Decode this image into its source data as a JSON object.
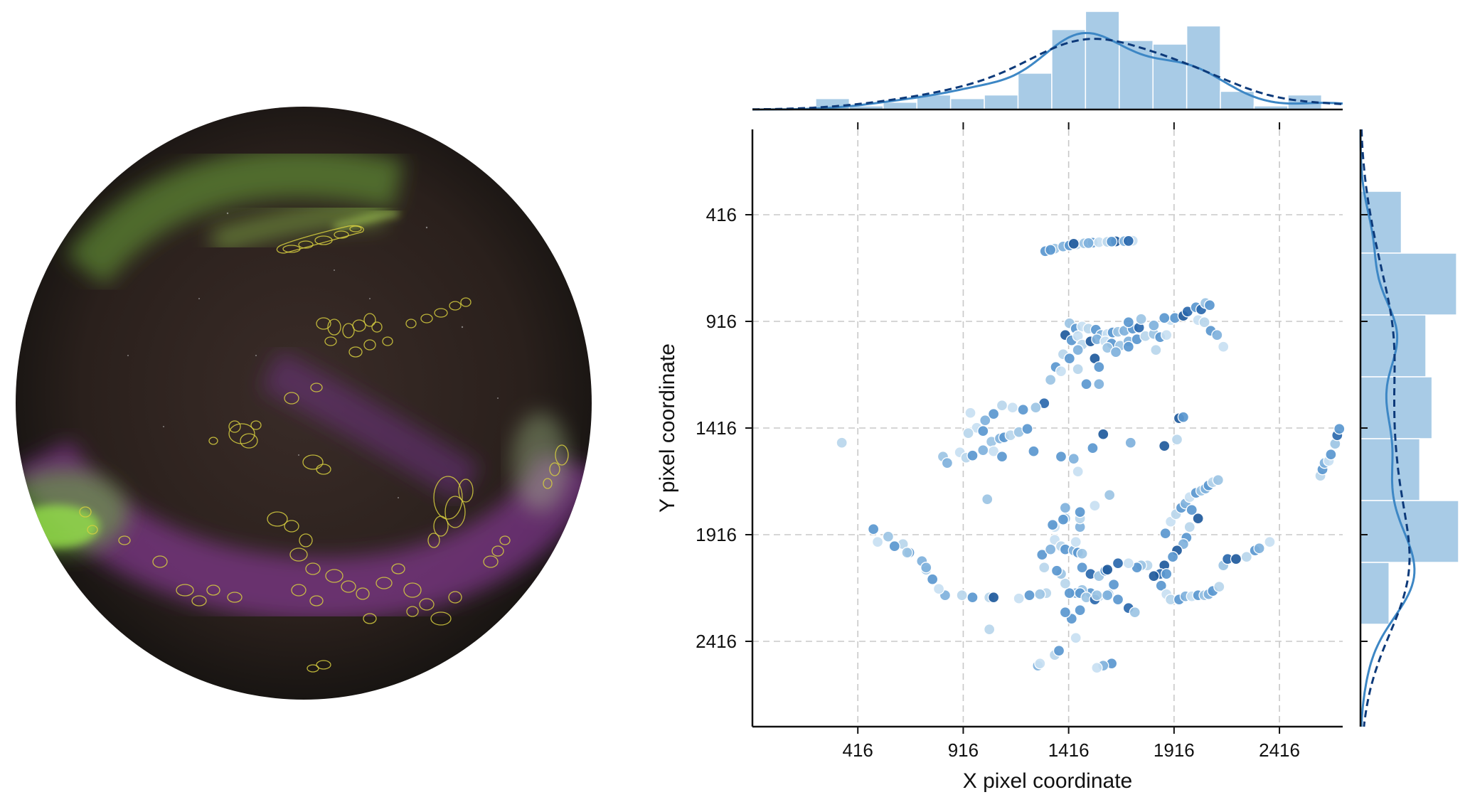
{
  "colors": {
    "sky_outer": "#1a1614",
    "sky_inner": "#3a2c26",
    "aurora_green": "#8fd040",
    "aurora_purple": "#9a40b0",
    "contour_yellow": "#d8d040",
    "point_light": "#b8d6ec",
    "point_dark": "#1f5a9c",
    "hist_fill": "#a8cbe6",
    "kde_solid": "#3d87c5",
    "kde_dashed": "#0d3a7a",
    "grid": "#c8c8c8"
  },
  "chart_data": {
    "type": "scatter",
    "xlabel": "X pixel coordinate",
    "ylabel": "Y pixel coordinate",
    "xlim": [
      -84,
      2716
    ],
    "ylim": [
      2816,
      16
    ],
    "xticks": [
      416,
      916,
      1416,
      1916,
      2416
    ],
    "yticks": [
      416,
      916,
      1416,
      1916,
      2416
    ],
    "grid": true,
    "points": [
      [
        1305,
        587
      ],
      [
        1350,
        575
      ],
      [
        1390,
        565
      ],
      [
        1420,
        560
      ],
      [
        1455,
        555
      ],
      [
        1490,
        550
      ],
      [
        1530,
        547
      ],
      [
        1560,
        545
      ],
      [
        1600,
        543
      ],
      [
        1640,
        541
      ],
      [
        1680,
        540
      ],
      [
        1720,
        538
      ],
      [
        1330,
        581
      ],
      [
        1440,
        552
      ],
      [
        1510,
        549
      ],
      [
        1620,
        542
      ],
      [
        1700,
        539
      ],
      [
        1420,
        925
      ],
      [
        1450,
        950
      ],
      [
        1480,
        940
      ],
      [
        1510,
        950
      ],
      [
        1545,
        955
      ],
      [
        1570,
        980
      ],
      [
        1600,
        975
      ],
      [
        1625,
        968
      ],
      [
        1650,
        965
      ],
      [
        1680,
        960
      ],
      [
        1720,
        950
      ],
      [
        1750,
        945
      ],
      [
        1400,
        980
      ],
      [
        1430,
        1005
      ],
      [
        1460,
        985
      ],
      [
        1480,
        1025
      ],
      [
        1520,
        1010
      ],
      [
        1550,
        1000
      ],
      [
        1590,
        1010
      ],
      [
        1620,
        1020
      ],
      [
        1660,
        1030
      ],
      [
        1700,
        1010
      ],
      [
        1740,
        1000
      ],
      [
        1780,
        985
      ],
      [
        1820,
        975
      ],
      [
        1850,
        990
      ],
      [
        1880,
        980
      ],
      [
        1390,
        1070
      ],
      [
        1420,
        1090
      ],
      [
        1460,
        1050
      ],
      [
        1540,
        1090
      ],
      [
        1560,
        1130
      ],
      [
        1600,
        1040
      ],
      [
        1640,
        1060
      ],
      [
        1700,
        1035
      ],
      [
        1830,
        1050
      ],
      [
        1330,
        1190
      ],
      [
        1355,
        1130
      ],
      [
        1380,
        1150
      ],
      [
        1460,
        1140
      ],
      [
        1500,
        1210
      ],
      [
        1560,
        1210
      ],
      [
        1900,
        910
      ],
      [
        1920,
        900
      ],
      [
        1960,
        890
      ],
      [
        1980,
        870
      ],
      [
        2020,
        850
      ],
      [
        2045,
        860
      ],
      [
        2065,
        830
      ],
      [
        2085,
        840
      ],
      [
        2030,
        910
      ],
      [
        2060,
        920
      ],
      [
        2090,
        960
      ],
      [
        2120,
        980
      ],
      [
        2150,
        1035
      ],
      [
        1700,
        920
      ],
      [
        1760,
        905
      ],
      [
        1820,
        935
      ],
      [
        1870,
        900
      ],
      [
        1300,
        1300
      ],
      [
        1260,
        1320
      ],
      [
        1200,
        1330
      ],
      [
        1150,
        1320
      ],
      [
        1100,
        1310
      ],
      [
        1060,
        1350
      ],
      [
        1020,
        1380
      ],
      [
        980,
        1415
      ],
      [
        1010,
        1430
      ],
      [
        1050,
        1480
      ],
      [
        1090,
        1465
      ],
      [
        1110,
        1460
      ],
      [
        1140,
        1450
      ],
      [
        1180,
        1435
      ],
      [
        1220,
        1420
      ],
      [
        950,
        1345
      ],
      [
        940,
        1440
      ],
      [
        1380,
        1550
      ],
      [
        1440,
        1560
      ],
      [
        1460,
        1620
      ],
      [
        1530,
        1510
      ],
      [
        1580,
        1445
      ],
      [
        1710,
        1485
      ],
      [
        1870,
        1500
      ],
      [
        1930,
        1470
      ],
      [
        1940,
        1370
      ],
      [
        1960,
        1365
      ],
      [
        900,
        1530
      ],
      [
        930,
        1555
      ],
      [
        960,
        1545
      ],
      [
        1010,
        1520
      ],
      [
        1060,
        1525
      ],
      [
        1100,
        1550
      ],
      [
        820,
        1550
      ],
      [
        840,
        1580
      ],
      [
        1250,
        1525
      ],
      [
        340,
        1485
      ],
      [
        1610,
        1730
      ],
      [
        1875,
        1910
      ],
      [
        1900,
        1855
      ],
      [
        1925,
        1820
      ],
      [
        1950,
        1790
      ],
      [
        1970,
        1770
      ],
      [
        1990,
        1740
      ],
      [
        2020,
        1720
      ],
      [
        2045,
        1710
      ],
      [
        2065,
        1700
      ],
      [
        2080,
        1685
      ],
      [
        2100,
        1670
      ],
      [
        2125,
        1660
      ],
      [
        2000,
        1800
      ],
      [
        2030,
        1840
      ],
      [
        1990,
        1880
      ],
      [
        1975,
        1930
      ],
      [
        1960,
        1960
      ],
      [
        1930,
        1990
      ],
      [
        1910,
        2020
      ],
      [
        1870,
        2060
      ],
      [
        1850,
        2100
      ],
      [
        1880,
        2100
      ],
      [
        1790,
        2060
      ],
      [
        1760,
        2060
      ],
      [
        1740,
        2070
      ],
      [
        1700,
        2050
      ],
      [
        1650,
        2050
      ],
      [
        1630,
        2150
      ],
      [
        1605,
        2195
      ],
      [
        1560,
        2205
      ],
      [
        1520,
        2190
      ],
      [
        1480,
        2175
      ],
      [
        1450,
        2190
      ],
      [
        1420,
        2190
      ],
      [
        1400,
        2145
      ],
      [
        1380,
        2100
      ],
      [
        1360,
        2085
      ],
      [
        1350,
        1940
      ],
      [
        1380,
        1970
      ],
      [
        1400,
        1985
      ],
      [
        1440,
        1990
      ],
      [
        1450,
        1950
      ],
      [
        1460,
        2000
      ],
      [
        1480,
        2005
      ],
      [
        1470,
        1880
      ],
      [
        1480,
        2070
      ],
      [
        1520,
        2100
      ],
      [
        1560,
        2110
      ],
      [
        1590,
        2085
      ],
      [
        1600,
        2080
      ],
      [
        1300,
        2070
      ],
      [
        1290,
        2010
      ],
      [
        1330,
        1985
      ],
      [
        1350,
        1880
      ],
      [
        1340,
        1870
      ],
      [
        1400,
        1840
      ],
      [
        1400,
        1790
      ],
      [
        1390,
        1845
      ],
      [
        1470,
        1840
      ],
      [
        1820,
        2110
      ],
      [
        1855,
        2155
      ],
      [
        1880,
        2195
      ],
      [
        1900,
        2220
      ],
      [
        1940,
        2220
      ],
      [
        1970,
        2205
      ],
      [
        2000,
        2205
      ],
      [
        2030,
        2200
      ],
      [
        2060,
        2200
      ],
      [
        2080,
        2195
      ],
      [
        2100,
        2180
      ],
      [
        2130,
        2160
      ],
      [
        2150,
        2060
      ],
      [
        2170,
        2030
      ],
      [
        2210,
        2030
      ],
      [
        2260,
        2020
      ],
      [
        2300,
        1990
      ],
      [
        2320,
        1980
      ],
      [
        2370,
        1950
      ],
      [
        1470,
        2190
      ],
      [
        1500,
        2210
      ],
      [
        1540,
        2220
      ],
      [
        1470,
        2270
      ],
      [
        1700,
        2260
      ],
      [
        1730,
        2280
      ],
      [
        1430,
        2310
      ],
      [
        1450,
        2400
      ],
      [
        1350,
        2480
      ],
      [
        1370,
        2460
      ],
      [
        1270,
        2530
      ],
      [
        1280,
        2520
      ],
      [
        1400,
        2280
      ],
      [
        1550,
        2200
      ],
      [
        1600,
        2200
      ],
      [
        1650,
        2220
      ],
      [
        1310,
        2190
      ],
      [
        1280,
        2195
      ],
      [
        1230,
        2200
      ],
      [
        1180,
        2215
      ],
      [
        1040,
        2210
      ],
      [
        960,
        2210
      ],
      [
        830,
        2200
      ],
      [
        800,
        2170
      ],
      [
        770,
        2125
      ],
      [
        740,
        2080
      ],
      [
        720,
        2040
      ],
      [
        660,
        2000
      ],
      [
        630,
        1960
      ],
      [
        560,
        1925
      ],
      [
        490,
        1890
      ],
      [
        510,
        1950
      ],
      [
        1040,
        2360
      ],
      [
        1620,
        2520
      ],
      [
        1580,
        2530
      ],
      [
        1550,
        2540
      ],
      [
        590,
        1970
      ],
      [
        650,
        2000
      ],
      [
        740,
        2070
      ],
      [
        1060,
        2210
      ],
      [
        910,
        2200
      ],
      [
        1030,
        1750
      ],
      [
        1470,
        1810
      ],
      [
        1540,
        1780
      ],
      [
        2610,
        1640
      ],
      [
        2620,
        1610
      ],
      [
        2630,
        1580
      ],
      [
        2650,
        1570
      ],
      [
        2660,
        1540
      ],
      [
        2680,
        1490
      ],
      [
        2690,
        1450
      ],
      [
        2700,
        1420
      ]
    ],
    "dark_indices": [
      9,
      13,
      16,
      28,
      29,
      33,
      47,
      61,
      62,
      64,
      76,
      97,
      99,
      101,
      127,
      131,
      133,
      134,
      140,
      160,
      163,
      173,
      186,
      187,
      194,
      196,
      231,
      242,
      246
    ],
    "x_hist": {
      "bin_edges": [
        216,
        376,
        536,
        696,
        856,
        1016,
        1176,
        1336,
        1496,
        1656,
        1816,
        1976,
        2136,
        2296,
        2456,
        2616
      ],
      "counts": [
        3,
        1,
        2,
        4,
        3,
        4,
        10,
        22,
        27,
        19,
        18,
        23,
        5,
        1,
        4
      ]
    },
    "y_hist": {
      "bin_edges": [
        16,
        306,
        596,
        886,
        1176,
        1466,
        1756,
        2046,
        2336,
        2626
      ],
      "counts": [
        0,
        20,
        47,
        32,
        35,
        29,
        48,
        14,
        0
      ]
    },
    "kde_note": "marginal density curves: solid = sample KDE, dashed = reference density"
  }
}
